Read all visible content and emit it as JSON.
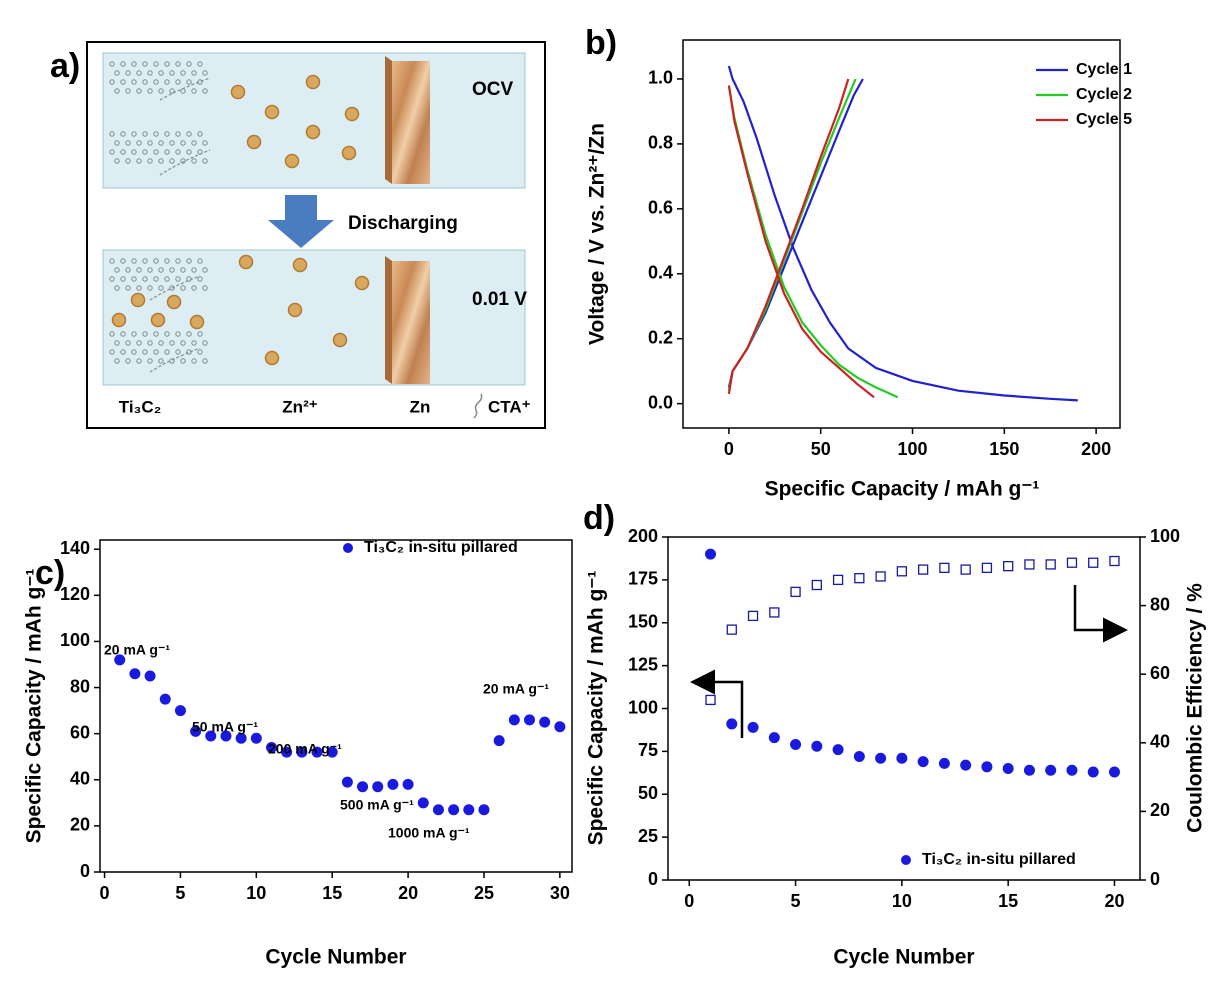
{
  "figure_a": {
    "panel_label": "a)",
    "state_top": "OCV",
    "process": "Discharging",
    "state_bottom": "0.01 V",
    "labels": [
      "Ti₃C₂",
      "Zn²⁺",
      "Zn",
      "CTA⁺"
    ]
  },
  "chart_data": [
    {
      "type": "line",
      "panel_label": "b)",
      "x_label": "Specific Capacity / mAh g⁻¹",
      "y_label": "Voltage / V vs. Zn²⁺/Zn",
      "xlim": [
        -25,
        213
      ],
      "ylim": [
        -0.075,
        1.12
      ],
      "xticks": [
        0,
        50,
        100,
        150,
        200
      ],
      "yticks": [
        {
          "value": 0,
          "label": "0.0"
        },
        0.2,
        0.4,
        0.6,
        0.8,
        {
          "value": 1,
          "label": "1.0"
        }
      ],
      "series": [
        {
          "name": "Cycle 1",
          "color": "#2222cc",
          "x": [
            0,
            2,
            8,
            15,
            25,
            35,
            45,
            55,
            65,
            80,
            100,
            125,
            150,
            175,
            190,
            null,
            0,
            2,
            10,
            20,
            30,
            40,
            50,
            60,
            68,
            73
          ],
          "values": [
            1.04,
            1.0,
            0.93,
            0.82,
            0.64,
            0.48,
            0.35,
            0.25,
            0.17,
            0.11,
            0.07,
            0.04,
            0.025,
            0.015,
            0.01,
            null,
            0.05,
            0.1,
            0.17,
            0.28,
            0.42,
            0.56,
            0.7,
            0.84,
            0.95,
            1.0
          ]
        },
        {
          "name": "Cycle 2",
          "color": "#22cc22",
          "x": [
            0,
            3,
            10,
            20,
            30,
            40,
            50,
            60,
            70,
            80,
            92,
            null,
            0,
            2,
            10,
            20,
            30,
            40,
            50,
            60,
            69
          ],
          "values": [
            0.98,
            0.88,
            0.72,
            0.52,
            0.36,
            0.25,
            0.18,
            0.12,
            0.08,
            0.05,
            0.02,
            null,
            0.04,
            0.1,
            0.17,
            0.29,
            0.44,
            0.59,
            0.74,
            0.88,
            1.0
          ]
        },
        {
          "name": "Cycle 5",
          "color": "#cc2222",
          "x": [
            0,
            3,
            10,
            20,
            30,
            40,
            50,
            60,
            70,
            79,
            null,
            0,
            2,
            10,
            20,
            30,
            40,
            50,
            60,
            65
          ],
          "values": [
            0.98,
            0.87,
            0.71,
            0.5,
            0.34,
            0.23,
            0.16,
            0.11,
            0.06,
            0.02,
            null,
            0.03,
            0.1,
            0.17,
            0.3,
            0.45,
            0.6,
            0.76,
            0.91,
            1.0
          ]
        }
      ]
    },
    {
      "type": "scatter",
      "panel_label": "c)",
      "x_label": "Cycle Number",
      "y_label": "Specific Capacity / mAh g⁻¹",
      "xlim": [
        -0.3,
        30.8
      ],
      "ylim": [
        0,
        144
      ],
      "xticks": [
        0,
        5,
        10,
        15,
        20,
        25,
        30
      ],
      "yticks": [
        0,
        20,
        40,
        60,
        80,
        100,
        120,
        140
      ],
      "x": [
        1,
        2,
        3,
        4,
        5,
        6,
        7,
        8,
        9,
        10,
        11,
        12,
        13,
        14,
        15,
        16,
        17,
        18,
        19,
        20,
        21,
        22,
        23,
        24,
        25,
        26,
        27,
        28,
        29,
        30
      ],
      "series": [
        {
          "name": "Ti₃C₂ in-situ pillared",
          "color": "#1a1adf",
          "marker": "circle",
          "values": [
            92,
            86,
            85,
            75,
            70,
            61,
            59,
            59,
            58,
            58,
            54,
            52,
            52,
            52,
            52,
            39,
            37,
            37,
            38,
            38,
            30,
            27,
            27,
            27,
            27,
            57,
            66,
            66,
            65,
            63
          ]
        }
      ],
      "annotations": [
        "20 mA g⁻¹",
        "50 mA g⁻¹",
        "200 mA g⁻¹",
        "500 mA g⁻¹",
        "1000 mA g⁻¹",
        "20 mA g⁻¹"
      ]
    },
    {
      "type": "scatter",
      "panel_label": "d)",
      "x_label": "Cycle Number",
      "y_label": "Specific Capacity / mAh g⁻¹",
      "y2_label": "Coulombic Efficiency / %",
      "xlim": [
        -1,
        21.2
      ],
      "ylim": [
        0,
        200
      ],
      "y2lim": [
        0,
        100
      ],
      "xticks": [
        0,
        5,
        10,
        15,
        20
      ],
      "yticks": [
        0,
        25,
        50,
        75,
        100,
        125,
        150,
        175,
        200
      ],
      "y2ticks": [
        0,
        20,
        40,
        60,
        80,
        100
      ],
      "x": [
        1,
        2,
        3,
        4,
        5,
        6,
        7,
        8,
        9,
        10,
        11,
        12,
        13,
        14,
        15,
        16,
        17,
        18,
        19,
        20
      ],
      "series": [
        {
          "name": "Ti₃C₂ in-situ pillared",
          "color": "#1a1adf",
          "marker": "circle",
          "values": [
            190,
            91,
            89,
            83,
            79,
            78,
            76,
            72,
            71,
            71,
            69,
            68,
            67,
            66,
            65,
            64,
            64,
            64,
            63,
            63
          ]
        },
        {
          "color": "#1a1a9f",
          "marker": "square-open",
          "axis": "y2",
          "values": [
            52.5,
            73,
            77,
            78,
            84,
            86,
            87.5,
            88,
            88.5,
            90,
            90.5,
            91,
            90.5,
            91,
            91.5,
            92,
            92,
            92.5,
            92.5,
            93
          ]
        }
      ]
    }
  ]
}
